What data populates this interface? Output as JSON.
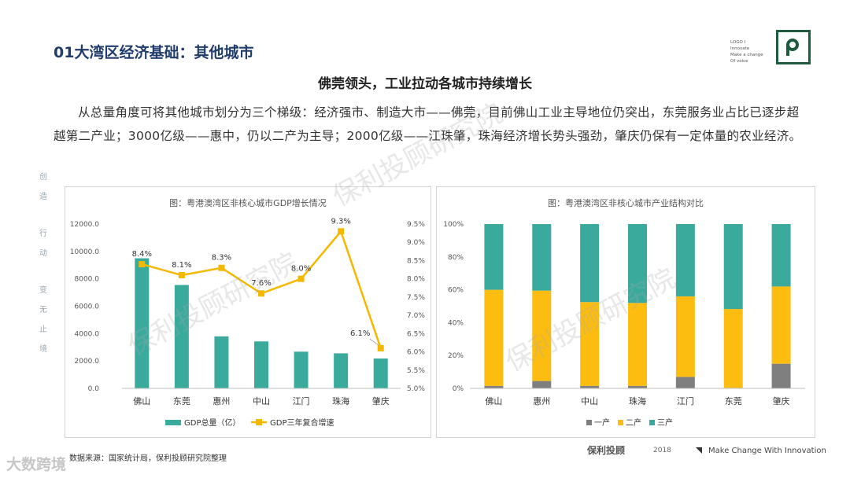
{
  "header": {
    "title": "01大湾区经济基础：其他城市",
    "logo_text": [
      "LOGO I",
      "Innovate",
      "Make a change",
      "Of voice"
    ]
  },
  "subtitle": "佛莞领头，工业拉动各城市持续增长",
  "paragraph": "从总量角度可将其他城市划分为三个梯级：经济强市、制造大市——佛莞，目前佛山工业主导地位仍突出，东莞服务业占比已逐步超越第二产业；3000亿级——惠中，仍以二产为主导；2000亿级——江珠肇，珠海经济增长势头强劲，肇庆仍保有一定体量的农业经济。",
  "sidebar_chars": [
    "创",
    "造",
    "行",
    "动",
    "变",
    "无",
    "止",
    "境"
  ],
  "watermarks": [
    "保利投顾研究院",
    "保利投顾研究院",
    "保利投顾研究院"
  ],
  "source": "数据来源：国家统计局，保利投顾研究院整理",
  "footer": {
    "left_watermark": "大数跨境",
    "brand": "保利投顾",
    "year": "2018",
    "slogan": "Make Change With Innovation"
  },
  "chart_data": [
    {
      "type": "bar",
      "title": "图：粤港澳湾区非核心城市GDP增长情况",
      "categories": [
        "佛山",
        "东莞",
        "惠州",
        "中山",
        "江门",
        "珠海",
        "肇庆"
      ],
      "series": [
        {
          "name": "GDP总量（亿）",
          "type": "bar",
          "axis": "left",
          "color": "#3aaa9d",
          "values": [
            9500,
            7550,
            3800,
            3430,
            2680,
            2560,
            2180
          ]
        },
        {
          "name": "GDP三年复合增速",
          "type": "line",
          "axis": "right",
          "color": "#f5b800",
          "values": [
            8.4,
            8.1,
            8.3,
            7.6,
            8.0,
            9.3,
            6.1
          ],
          "labels": [
            "8.4%",
            "8.1%",
            "8.3%",
            "7.6%",
            "8.0%",
            "9.3%",
            "6.1%"
          ]
        }
      ],
      "y_left": {
        "ylim": [
          0,
          12000
        ],
        "ticks": [
          "0.0",
          "2000.0",
          "4000.0",
          "6000.0",
          "8000.0",
          "10000.0",
          "12000.0"
        ]
      },
      "y_right": {
        "ylim": [
          5.0,
          9.5
        ],
        "ticks": [
          "5.0%",
          "5.5%",
          "6.0%",
          "6.5%",
          "7.0%",
          "7.5%",
          "8.0%",
          "8.5%",
          "9.0%",
          "9.5%"
        ]
      },
      "legend": "bottom"
    },
    {
      "type": "bar",
      "stacked": true,
      "title": "图：粤港澳湾区非核心城市产业结构对比",
      "categories": [
        "佛山",
        "惠州",
        "中山",
        "珠海",
        "江门",
        "东莞",
        "肇庆"
      ],
      "series": [
        {
          "name": "一产",
          "color": "#7f7f7f",
          "values": [
            1.5,
            4.5,
            1.5,
            1.5,
            7.0,
            0.3,
            15.0
          ]
        },
        {
          "name": "二产",
          "color": "#fdbd10",
          "values": [
            58.5,
            55.0,
            51.0,
            50.5,
            49.0,
            48.0,
            47.0
          ]
        },
        {
          "name": "三产",
          "color": "#3aaa9d",
          "values": [
            40.0,
            40.5,
            47.5,
            48.0,
            44.0,
            51.7,
            38.0
          ]
        }
      ],
      "ylim": [
        0,
        100
      ],
      "ticks": [
        "0%",
        "20%",
        "40%",
        "60%",
        "80%",
        "100%"
      ],
      "legend": "bottom"
    }
  ]
}
